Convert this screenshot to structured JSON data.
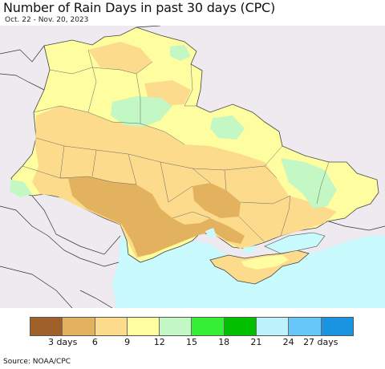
{
  "title": "Number of Rain Days in past 30 days (CPC)",
  "subtitle": "Oct. 22 - Nov. 20, 2023",
  "source": "Source: NOAA/CPC",
  "legend": {
    "colors": [
      "#a0602a",
      "#e3b25f",
      "#fddb8c",
      "#fefea0",
      "#c3f7c3",
      "#35f035",
      "#00c000",
      "#bdf2fd",
      "#66c7f8",
      "#1a94e0"
    ],
    "ticks": [
      "3 days",
      "6",
      "9",
      "12",
      "15",
      "18",
      "21",
      "24",
      "27 days"
    ]
  },
  "map": {
    "sea_color": "#c8fafe",
    "outside_color": "#eeeaf0"
  }
}
